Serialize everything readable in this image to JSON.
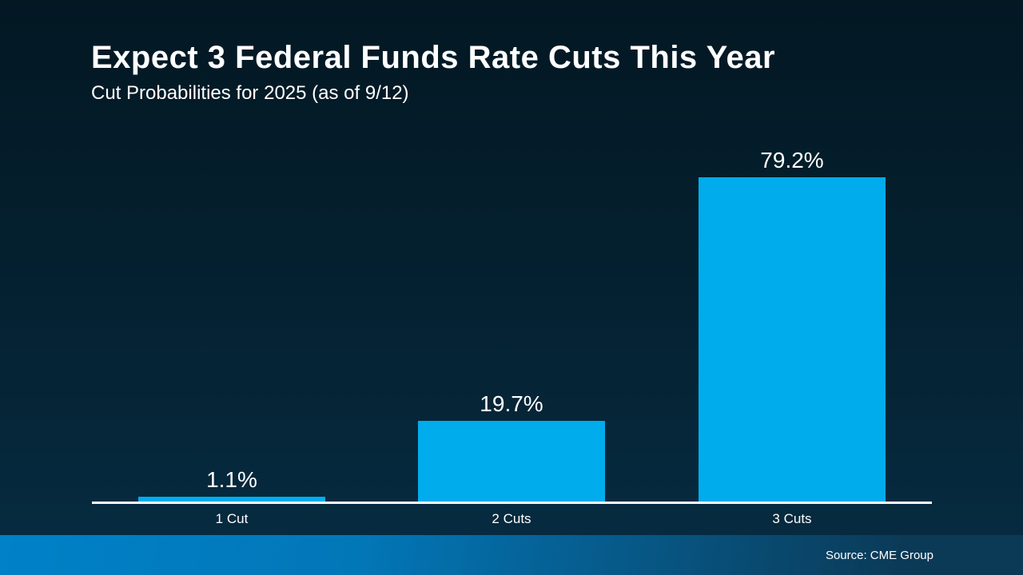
{
  "header": {
    "title": "Expect 3 Federal Funds Rate Cuts This Year",
    "subtitle": "Cut Probabilities for 2025 (as of 9/12)"
  },
  "chart_data": {
    "type": "bar",
    "title": "Expect 3 Federal Funds Rate Cuts This Year",
    "subtitle": "Cut Probabilities for 2025 (as of 9/12)",
    "categories": [
      "1 Cut",
      "2 Cuts",
      "3 Cuts"
    ],
    "values": [
      1.1,
      19.7,
      79.2
    ],
    "value_labels": [
      "1.1%",
      "19.7%",
      "79.2%"
    ],
    "unit": "%",
    "xlabel": "",
    "ylabel": "",
    "grid": false,
    "legend_position": "none",
    "bar_color": "#00ACEB",
    "axis_color": "#FFFFFF"
  },
  "footer": {
    "source": "Source: CME Group"
  },
  "colors": {
    "background_top": "#031823",
    "background_bottom": "#072C42",
    "bar": "#00ACEB",
    "axis": "#FFFFFF",
    "text": "#FFFFFF",
    "footer_gradient_left": "#0081C8",
    "footer_gradient_right": "#0B3A57"
  }
}
